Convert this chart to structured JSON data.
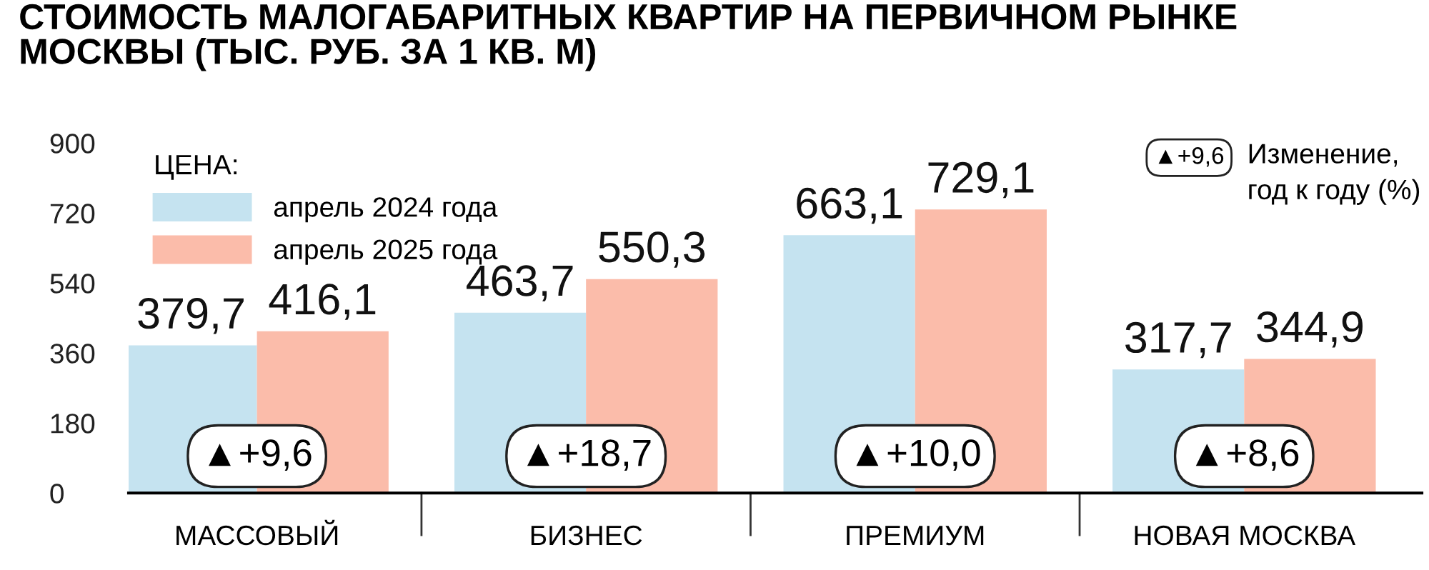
{
  "chart_data": {
    "type": "bar",
    "title": "СТОИМОСТЬ МАЛОГАБАРИТНЫХ КВАРТИР НА ПЕРВИЧНОМ РЫНКЕ\nМОСКВЫ (ТЫС. РУБ. ЗА 1 КВ. М)",
    "categories": [
      "МАССОВЫЙ",
      "БИЗНЕС",
      "ПРЕМИУМ",
      "НОВАЯ МОСКВА"
    ],
    "series": [
      {
        "name": "апрель 2024 года",
        "color": "#c5e3f0",
        "values": [
          379.7,
          463.7,
          663.1,
          317.7
        ]
      },
      {
        "name": "апрель 2025 года",
        "color": "#fbbcaa",
        "values": [
          416.1,
          550.3,
          729.1,
          344.9
        ]
      }
    ],
    "value_labels": [
      [
        "379,7",
        "463,7",
        "663,1",
        "317,7"
      ],
      [
        "416,1",
        "550,3",
        "729,1",
        "344,9"
      ]
    ],
    "legend_title": "ЦЕНА:",
    "legend": "top left",
    "ylim": [
      0,
      900
    ],
    "yticks": [
      0,
      180,
      360,
      540,
      720,
      900
    ],
    "grid": false,
    "annotations": [
      {
        "text": "▲+9,6",
        "x": "МАССОВЫЙ",
        "y": 95
      },
      {
        "text": "▲+18,7",
        "x": "БИЗНЕС",
        "y": 95
      },
      {
        "text": "▲+10,0",
        "x": "ПРЕМИУМ",
        "y": 95
      },
      {
        "text": "▲+8,6",
        "x": "НОВАЯ МОСКВА",
        "y": 95
      },
      "▲+9,6",
      "Изменение,\nгод к году (%)"
    ]
  }
}
